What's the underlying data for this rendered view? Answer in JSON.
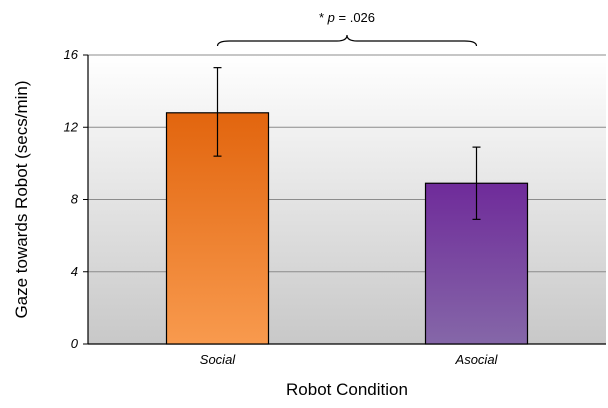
{
  "chart_data": {
    "type": "bar",
    "categories": [
      "Social",
      "Asocial"
    ],
    "values": [
      12.8,
      8.9
    ],
    "error_bars": [
      {
        "low": 10.4,
        "high": 15.3
      },
      {
        "low": 6.9,
        "high": 10.9
      }
    ],
    "xlabel": "Robot Condition",
    "ylabel": "Gaze towards Robot (secs/min)",
    "ylim": [
      0,
      16
    ],
    "yticks": [
      "0",
      "4",
      "8",
      "12",
      "16"
    ],
    "grid": true,
    "annotation": {
      "prefix": "* ",
      "italic_part": "p",
      "suffix": " = .026"
    },
    "colors": {
      "social_top": "#e2650e",
      "social_bottom": "#f89a4e",
      "asocial_top": "#6f2b9a",
      "asocial_bottom": "#8567a8",
      "background_top": "#ffffff",
      "background_bottom": "#c8c8c8"
    }
  }
}
